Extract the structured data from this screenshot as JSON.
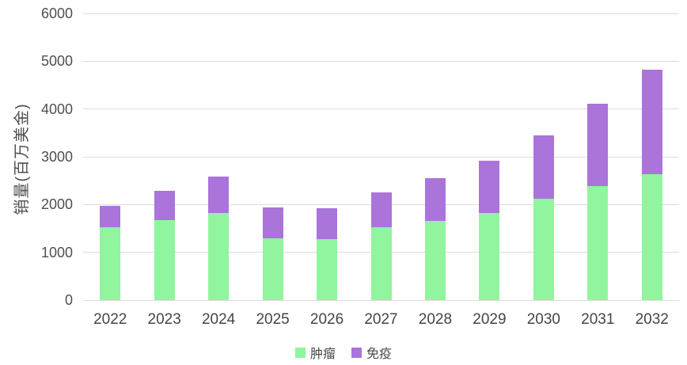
{
  "chart_data": {
    "type": "bar",
    "stacked": true,
    "title": "",
    "categories": [
      "2022",
      "2023",
      "2024",
      "2025",
      "2026",
      "2027",
      "2028",
      "2029",
      "2030",
      "2031",
      "2032"
    ],
    "series": [
      {
        "name": "肿瘤",
        "key": "oncology",
        "color": "#91f49e",
        "values": [
          1520,
          1670,
          1820,
          1300,
          1270,
          1520,
          1650,
          1830,
          2120,
          2390,
          2630
        ]
      },
      {
        "name": "免疫",
        "key": "immunology",
        "color": "#aa74da",
        "values": [
          450,
          610,
          760,
          640,
          650,
          730,
          910,
          1090,
          1320,
          1720,
          2190
        ]
      }
    ],
    "xlabel": "",
    "ylabel": "销量(百万美金)",
    "ylim": [
      0,
      6000
    ],
    "yticks": [
      0,
      1000,
      2000,
      3000,
      4000,
      5000,
      6000
    ],
    "grid": true,
    "legend_position": "bottom",
    "colors": {
      "gridline": "#dcdcdc",
      "axis_text": "#4f4f4f",
      "background": "#ffffff"
    }
  }
}
